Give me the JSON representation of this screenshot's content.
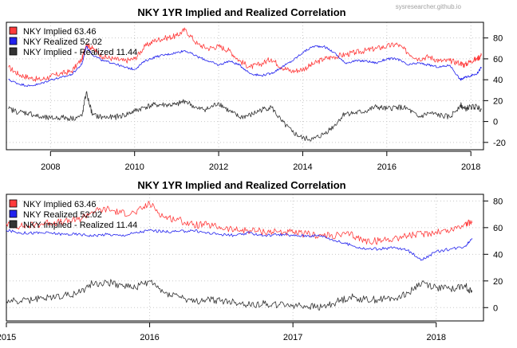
{
  "watermark": "sysresearcher.github.io",
  "colors": {
    "implied": "#ff3b3b",
    "realized": "#2222ee",
    "spread": "#333333",
    "grid": "#c8c8c8"
  },
  "chart_data": [
    {
      "type": "line",
      "title": "NKY 1YR Implied and Realized Correlation",
      "xlabel": "",
      "ylabel": "",
      "xlim": [
        2006.95,
        2018.3
      ],
      "ylim": [
        -27,
        95
      ],
      "yticks": [
        -20,
        0,
        20,
        40,
        60,
        80
      ],
      "xticks": [
        2008,
        2010,
        2012,
        2014,
        2016,
        2018
      ],
      "xtick_labels": [
        "2008",
        "2010",
        "2012",
        "2014",
        "2016",
        "2018"
      ],
      "grid": true,
      "legend_position": "top-left",
      "x": [
        2007.0,
        2007.25,
        2007.5,
        2007.75,
        2008.0,
        2008.25,
        2008.5,
        2008.75,
        2008.85,
        2009.0,
        2009.25,
        2009.5,
        2009.75,
        2010.0,
        2010.25,
        2010.5,
        2010.75,
        2011.0,
        2011.2,
        2011.5,
        2011.75,
        2012.0,
        2012.25,
        2012.5,
        2012.75,
        2013.0,
        2013.25,
        2013.5,
        2013.75,
        2014.0,
        2014.25,
        2014.5,
        2014.75,
        2015.0,
        2015.25,
        2015.5,
        2015.75,
        2016.0,
        2016.25,
        2016.5,
        2016.75,
        2017.0,
        2017.25,
        2017.5,
        2017.75,
        2017.85,
        2018.0,
        2018.15,
        2018.25
      ],
      "series": [
        {
          "name": "NKY Implied 63.46",
          "color": "#ff3b3b",
          "values": [
            52,
            45,
            42,
            40,
            43,
            46,
            48,
            60,
            74,
            70,
            62,
            60,
            58,
            60,
            72,
            78,
            80,
            82,
            88,
            74,
            70,
            72,
            68,
            58,
            52,
            55,
            60,
            52,
            48,
            50,
            55,
            60,
            62,
            64,
            66,
            68,
            70,
            72,
            74,
            66,
            60,
            62,
            58,
            58,
            56,
            54,
            58,
            60,
            63.46
          ]
        },
        {
          "name": "NKY Realized 52.02",
          "color": "#2222ee",
          "values": [
            40,
            36,
            34,
            36,
            40,
            42,
            45,
            55,
            72,
            64,
            58,
            56,
            52,
            50,
            58,
            62,
            64,
            66,
            68,
            62,
            58,
            54,
            58,
            54,
            46,
            44,
            46,
            52,
            58,
            66,
            72,
            72,
            66,
            56,
            58,
            58,
            56,
            60,
            60,
            54,
            56,
            54,
            52,
            54,
            40,
            42,
            44,
            46,
            52.02
          ]
        },
        {
          "name": "NKY Implied - Realized 11.44",
          "color": "#333333",
          "values": [
            12,
            9,
            8,
            4,
            3,
            4,
            3,
            5,
            28,
            6,
            4,
            4,
            6,
            10,
            14,
            16,
            16,
            16,
            20,
            12,
            12,
            18,
            10,
            4,
            6,
            11,
            14,
            0,
            -10,
            -16,
            -17,
            -12,
            -4,
            8,
            8,
            10,
            14,
            12,
            14,
            12,
            4,
            8,
            6,
            4,
            16,
            12,
            14,
            14,
            11.44
          ]
        }
      ]
    },
    {
      "type": "line",
      "title": "NKY 1YR Implied and Realized Correlation",
      "xlabel": "",
      "ylabel": "",
      "xlim": [
        2015.0,
        2018.33
      ],
      "ylim": [
        -10,
        85
      ],
      "yticks": [
        0,
        20,
        40,
        60,
        80
      ],
      "xticks": [
        2015,
        2016,
        2017,
        2018
      ],
      "xtick_labels": [
        "2015",
        "2016",
        "2017",
        "2018"
      ],
      "grid": true,
      "legend_position": "top-left",
      "x": [
        2015.0,
        2015.1,
        2015.2,
        2015.3,
        2015.4,
        2015.5,
        2015.6,
        2015.7,
        2015.8,
        2015.9,
        2016.0,
        2016.1,
        2016.2,
        2016.3,
        2016.4,
        2016.5,
        2016.6,
        2016.7,
        2016.8,
        2016.9,
        2017.0,
        2017.1,
        2017.2,
        2017.3,
        2017.4,
        2017.5,
        2017.6,
        2017.7,
        2017.8,
        2017.9,
        2018.0,
        2018.1,
        2018.2,
        2018.25
      ],
      "series": [
        {
          "name": "NKY Implied 63.46",
          "color": "#ff3b3b",
          "values": [
            63,
            61,
            62,
            64,
            64,
            66,
            72,
            74,
            71,
            71,
            78,
            68,
            66,
            62,
            62,
            60,
            58,
            58,
            57,
            57,
            56,
            55,
            54,
            54,
            55,
            50,
            50,
            52,
            54,
            55,
            57,
            58,
            63,
            63.46
          ]
        },
        {
          "name": "NKY Realized 52.02",
          "color": "#2222ee",
          "values": [
            58,
            56,
            56,
            56,
            55,
            55,
            54,
            55,
            54,
            56,
            58,
            57,
            57,
            58,
            56,
            55,
            54,
            56,
            54,
            55,
            54,
            54,
            54,
            50,
            47,
            44,
            44,
            45,
            43,
            36,
            42,
            44,
            46,
            52.02
          ]
        },
        {
          "name": "NKY Implied - Realized 11.44",
          "color": "#333333",
          "values": [
            5,
            5,
            6,
            8,
            9,
            11,
            18,
            19,
            17,
            15,
            20,
            11,
            9,
            4,
            6,
            5,
            4,
            2,
            3,
            2,
            2,
            1,
            0,
            4,
            8,
            6,
            6,
            7,
            11,
            19,
            15,
            14,
            17,
            11.44
          ]
        }
      ]
    }
  ]
}
